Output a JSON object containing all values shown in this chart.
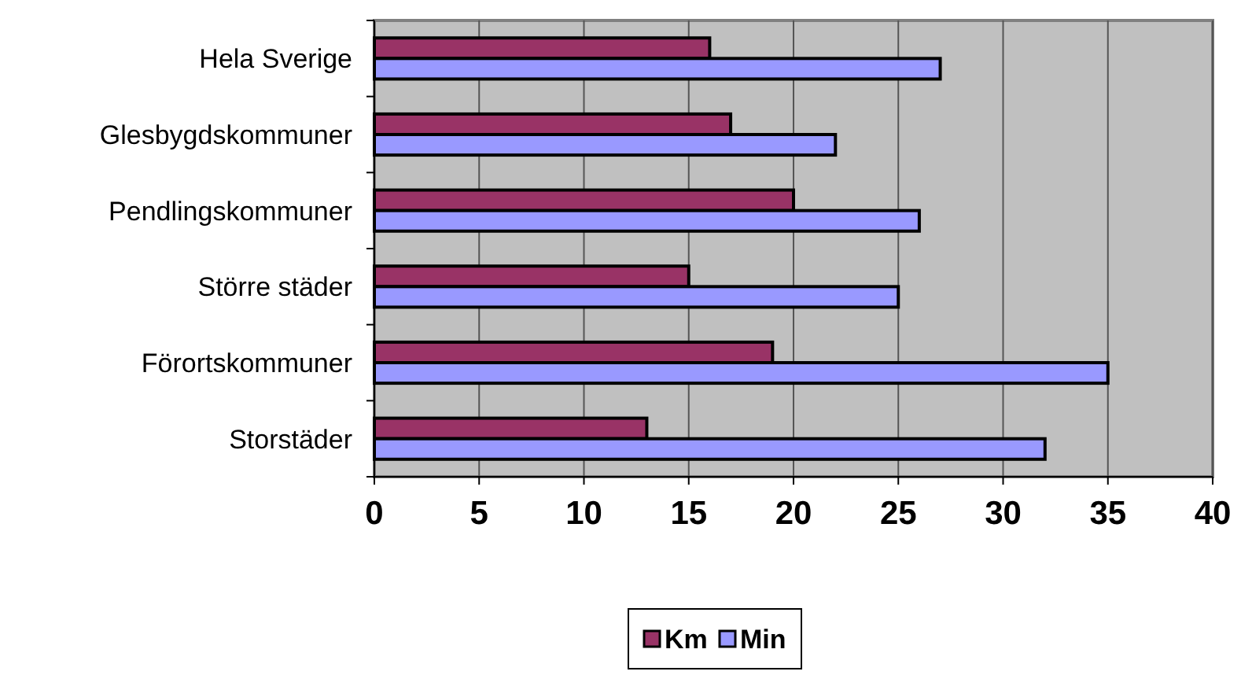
{
  "chart_data": {
    "type": "bar",
    "orientation": "horizontal",
    "categories": [
      "Hela Sverige",
      "Glesbygdskommuner",
      "Pendlingskommuner",
      "Större städer",
      "Förortskommuner",
      "Storstäder"
    ],
    "series": [
      {
        "name": "Km",
        "color": "#993366",
        "values": [
          16,
          17,
          20,
          15,
          19,
          13
        ]
      },
      {
        "name": "Min",
        "color": "#9999ff",
        "values": [
          27,
          22,
          26,
          25,
          35,
          32
        ]
      }
    ],
    "xlim": [
      0,
      40
    ],
    "xticks": [
      0,
      5,
      10,
      15,
      20,
      25,
      30,
      35,
      40
    ],
    "grid": "x",
    "legend": "bottom"
  }
}
